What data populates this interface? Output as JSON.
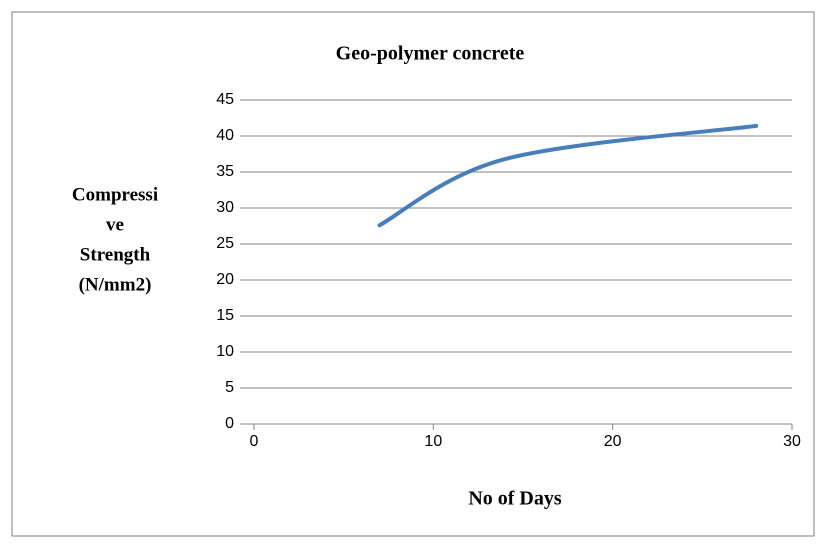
{
  "chart_data": {
    "type": "line",
    "title": "Geo-polymer concrete",
    "x_label": "No of Days",
    "y_label_lines": [
      "Compressi",
      "ve",
      "Strength",
      "(N/mm2)"
    ],
    "series": [
      {
        "name": "Geo-polymer concrete",
        "color": "#4a7ebb",
        "x": [
          7,
          14,
          28
        ],
        "values": [
          27.6,
          36.8,
          41.4
        ]
      }
    ],
    "xlim": [
      0,
      30
    ],
    "xticks": [
      0,
      10,
      20,
      30
    ],
    "ylim": [
      0,
      45
    ],
    "yticks": [
      0,
      5,
      10,
      15,
      20,
      25,
      30,
      35,
      40,
      45
    ],
    "grid": true
  }
}
